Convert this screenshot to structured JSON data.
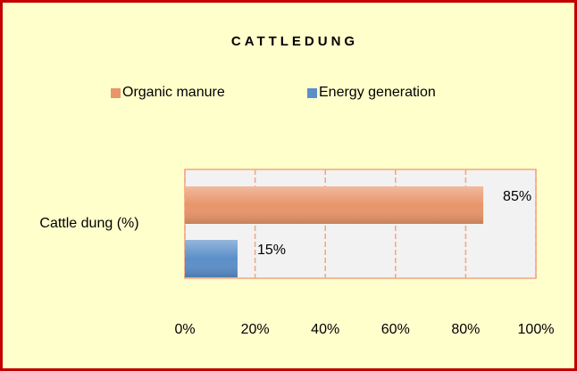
{
  "chart_data": {
    "type": "barh",
    "title": "CATTLEDUNG",
    "categories": [
      "Cattle dung (%)"
    ],
    "series": [
      {
        "name": "Organic manure",
        "color": "#e8956a",
        "values": [
          85
        ],
        "value_labels": [
          "85%"
        ]
      },
      {
        "name": "Energy generation",
        "color": "#5b8fc9",
        "values": [
          15
        ],
        "value_labels": [
          "15%"
        ]
      }
    ],
    "xlim": [
      0,
      100
    ],
    "xticks": [
      {
        "value": 0,
        "label": "0%"
      },
      {
        "value": 20,
        "label": "20%"
      },
      {
        "value": 40,
        "label": "40%"
      },
      {
        "value": 60,
        "label": "60%"
      },
      {
        "value": 80,
        "label": "80%"
      },
      {
        "value": 100,
        "label": "100%"
      }
    ],
    "grid": true,
    "legend": "top"
  }
}
